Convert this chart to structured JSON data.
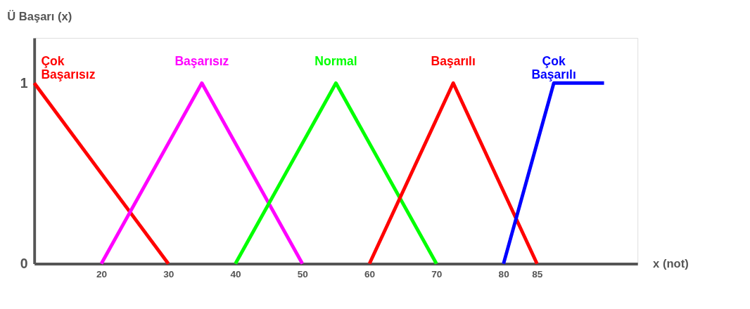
{
  "chart_data": {
    "type": "line",
    "xlabel": "x (not)",
    "ylabel": "Ü Başarı (x)",
    "xlim": [
      10,
      100
    ],
    "xticks": [
      20,
      30,
      40,
      50,
      60,
      70,
      80,
      85
    ],
    "ylim": [
      0,
      1.25
    ],
    "yticks": [
      0,
      1
    ],
    "grid": false,
    "legend": false,
    "marker": "none",
    "line_style": "solid",
    "series": [
      {
        "name": "Çok Başarısız",
        "color": "#ff0000",
        "x": [
          10,
          30
        ],
        "values": [
          1,
          0
        ]
      },
      {
        "name": "Başarısız",
        "color": "#ff00ff",
        "x": [
          20,
          35,
          50
        ],
        "values": [
          0,
          1,
          0
        ]
      },
      {
        "name": "Normal",
        "color": "#00ff00",
        "x": [
          40,
          55,
          70
        ],
        "values": [
          0,
          1,
          0
        ]
      },
      {
        "name": "Başarılı",
        "color": "#ff0000",
        "x": [
          60,
          72.5,
          85
        ],
        "values": [
          0,
          1,
          0
        ]
      },
      {
        "name": "Çok Başarılı",
        "color": "#0000ff",
        "x": [
          80,
          87.5,
          95
        ],
        "values": [
          0,
          1,
          1
        ]
      }
    ]
  }
}
